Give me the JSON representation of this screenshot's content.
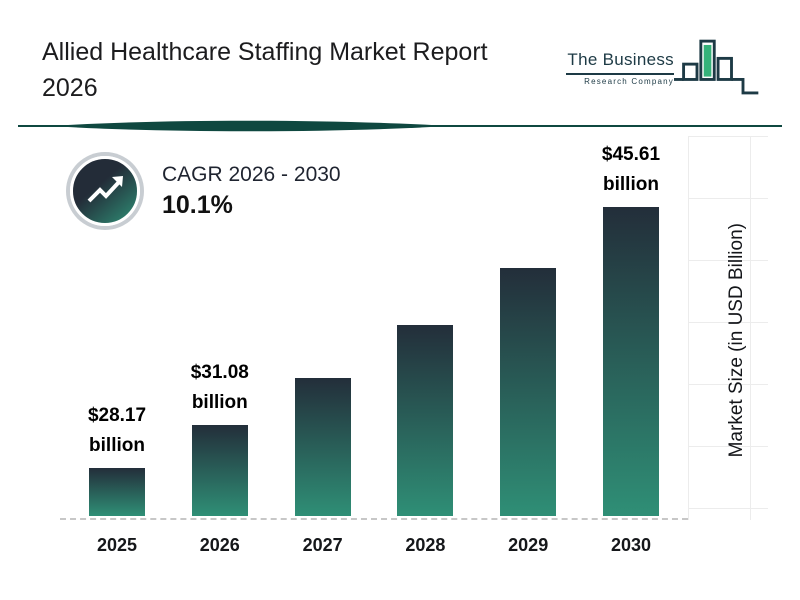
{
  "page": {
    "title_line1": "Allied Healthcare Staffing Market Report",
    "title_line2": "2026"
  },
  "logo": {
    "name": "The Business",
    "subname": "Research Company"
  },
  "cagr": {
    "label": "CAGR 2026 - 2030",
    "value": "10.1%"
  },
  "chart_data": {
    "type": "bar",
    "title": "Allied Healthcare Staffing Market Report 2026",
    "categories": [
      "2025",
      "2026",
      "2027",
      "2028",
      "2029",
      "2030"
    ],
    "values": [
      28.17,
      31.08,
      34.2,
      37.7,
      41.5,
      45.61
    ],
    "data_labels": [
      {
        "value": "$28.17",
        "unit": "billion"
      },
      {
        "value": "$31.08",
        "unit": "billion"
      },
      null,
      null,
      null,
      {
        "value": "$45.61",
        "unit": "billion"
      }
    ],
    "xlabel": "",
    "ylabel": "Market Size (in USD Billion)",
    "ylim": [
      25,
      47
    ],
    "grid": false,
    "legend": "none",
    "bar_gradient": [
      "#232e3a",
      "#2f8f76"
    ]
  },
  "colors": {
    "accent_teal": "#0f4840",
    "logo_green": "#35b27a",
    "dark_navy": "#232c38"
  }
}
